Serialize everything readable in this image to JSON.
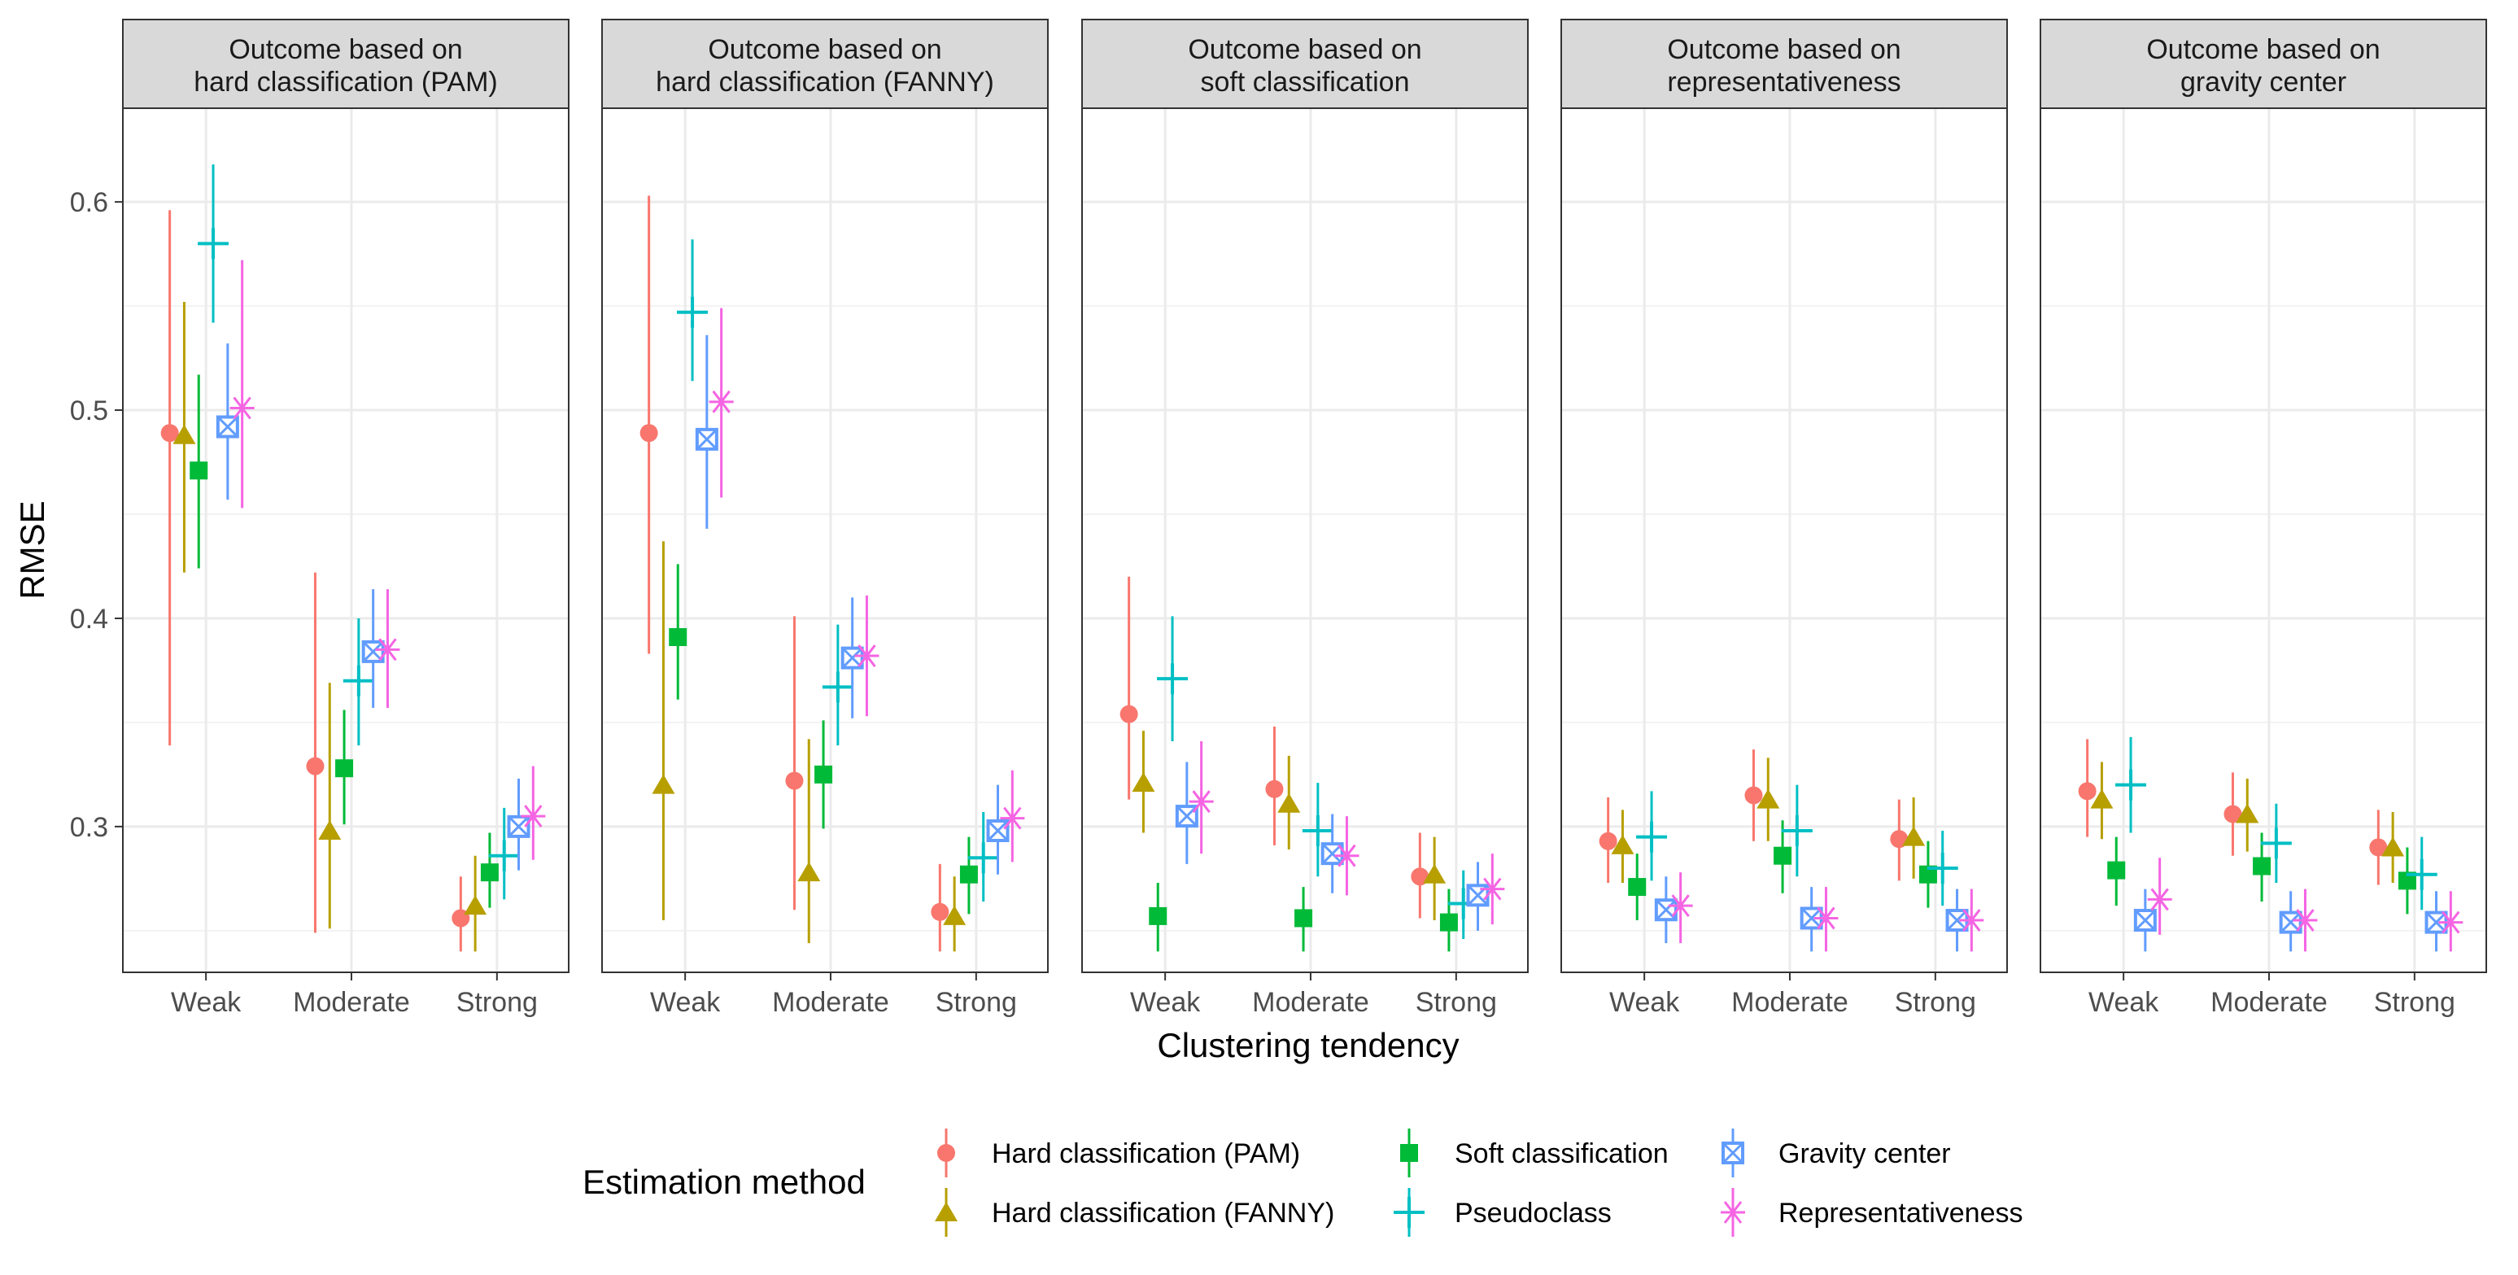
{
  "chart_data": {
    "type": "scatter",
    "subtype": "faceted point-range",
    "xlabel": "Clustering tendency",
    "ylabel": "RMSE",
    "ylim": [
      0.23,
      0.645
    ],
    "yticks": [
      0.3,
      0.4,
      0.5,
      0.6
    ],
    "yticks_labels": [
      "0.3",
      "0.4",
      "0.5",
      "0.6"
    ],
    "categories": [
      "Weak",
      "Moderate",
      "Strong"
    ],
    "grid": true,
    "legend": {
      "title": "Estimation method",
      "placement": "bottom"
    },
    "series": [
      {
        "name": "Hard classification (PAM)",
        "color": "#F8766D",
        "shape": "circle"
      },
      {
        "name": "Hard classification (FANNY)",
        "color": "#B79F00",
        "shape": "triangle"
      },
      {
        "name": "Soft classification",
        "color": "#00BA38",
        "shape": "square"
      },
      {
        "name": "Pseudoclass",
        "color": "#00BFC4",
        "shape": "plus"
      },
      {
        "name": "Gravity center",
        "color": "#619CFF",
        "shape": "boxed-x"
      },
      {
        "name": "Representativeness",
        "color": "#F564E3",
        "shape": "asterisk"
      }
    ],
    "panels": [
      {
        "title_lines": [
          "Outcome based on",
          "hard classification (PAM)"
        ],
        "data": [
          [
            [
              0.489,
              0.339,
              0.596
            ],
            [
              0.329,
              0.249,
              0.422
            ],
            [
              0.256,
              0.24,
              0.276
            ]
          ],
          [
            [
              0.488,
              0.422,
              0.552
            ],
            [
              0.298,
              0.251,
              0.369
            ],
            [
              0.262,
              0.24,
              0.286
            ]
          ],
          [
            [
              0.471,
              0.424,
              0.517
            ],
            [
              0.328,
              0.301,
              0.356
            ],
            [
              0.278,
              0.261,
              0.297
            ]
          ],
          [
            [
              0.58,
              0.542,
              0.618
            ],
            [
              0.37,
              0.339,
              0.4
            ],
            [
              0.286,
              0.265,
              0.309
            ]
          ],
          [
            [
              0.492,
              0.457,
              0.532
            ],
            [
              0.384,
              0.357,
              0.414
            ],
            [
              0.3,
              0.279,
              0.323
            ]
          ],
          [
            [
              0.501,
              0.453,
              0.572
            ],
            [
              0.385,
              0.357,
              0.414
            ],
            [
              0.305,
              0.284,
              0.329
            ]
          ]
        ]
      },
      {
        "title_lines": [
          "Outcome based on",
          "hard classification (FANNY)"
        ],
        "data": [
          [
            [
              0.489,
              0.383,
              0.603
            ],
            [
              0.322,
              0.26,
              0.401
            ],
            [
              0.259,
              0.24,
              0.282
            ]
          ],
          [
            [
              0.32,
              0.255,
              0.437
            ],
            [
              0.278,
              0.244,
              0.342
            ],
            [
              0.257,
              0.24,
              0.276
            ]
          ],
          [
            [
              0.391,
              0.361,
              0.426
            ],
            [
              0.325,
              0.299,
              0.351
            ],
            [
              0.277,
              0.258,
              0.295
            ]
          ],
          [
            [
              0.547,
              0.514,
              0.582
            ],
            [
              0.367,
              0.339,
              0.397
            ],
            [
              0.285,
              0.264,
              0.307
            ]
          ],
          [
            [
              0.486,
              0.443,
              0.536
            ],
            [
              0.381,
              0.352,
              0.41
            ],
            [
              0.298,
              0.277,
              0.32
            ]
          ],
          [
            [
              0.504,
              0.458,
              0.549
            ],
            [
              0.382,
              0.353,
              0.411
            ],
            [
              0.304,
              0.283,
              0.327
            ]
          ]
        ]
      },
      {
        "title_lines": [
          "Outcome based on",
          "soft classification"
        ],
        "data": [
          [
            [
              0.354,
              0.313,
              0.42
            ],
            [
              0.318,
              0.291,
              0.348
            ],
            [
              0.276,
              0.256,
              0.297
            ]
          ],
          [
            [
              0.321,
              0.297,
              0.346
            ],
            [
              0.311,
              0.289,
              0.334
            ],
            [
              0.277,
              0.255,
              0.295
            ]
          ],
          [
            [
              0.257,
              0.24,
              0.273
            ],
            [
              0.256,
              0.24,
              0.271
            ],
            [
              0.254,
              0.24,
              0.27
            ]
          ],
          [
            [
              0.371,
              0.341,
              0.401
            ],
            [
              0.298,
              0.276,
              0.321
            ],
            [
              0.263,
              0.246,
              0.279
            ]
          ],
          [
            [
              0.305,
              0.282,
              0.331
            ],
            [
              0.287,
              0.268,
              0.306
            ],
            [
              0.267,
              0.25,
              0.283
            ]
          ],
          [
            [
              0.312,
              0.287,
              0.341
            ],
            [
              0.286,
              0.267,
              0.305
            ],
            [
              0.27,
              0.253,
              0.287
            ]
          ]
        ]
      },
      {
        "title_lines": [
          "Outcome based on",
          "representativeness"
        ],
        "data": [
          [
            [
              0.293,
              0.273,
              0.314
            ],
            [
              0.315,
              0.293,
              0.337
            ],
            [
              0.294,
              0.274,
              0.313
            ]
          ],
          [
            [
              0.291,
              0.273,
              0.308
            ],
            [
              0.313,
              0.293,
              0.333
            ],
            [
              0.295,
              0.275,
              0.314
            ]
          ],
          [
            [
              0.271,
              0.255,
              0.287
            ],
            [
              0.286,
              0.268,
              0.303
            ],
            [
              0.277,
              0.261,
              0.293
            ]
          ],
          [
            [
              0.295,
              0.274,
              0.317
            ],
            [
              0.298,
              0.276,
              0.32
            ],
            [
              0.28,
              0.262,
              0.298
            ]
          ],
          [
            [
              0.26,
              0.244,
              0.276
            ],
            [
              0.256,
              0.24,
              0.271
            ],
            [
              0.255,
              0.24,
              0.27
            ]
          ],
          [
            [
              0.262,
              0.244,
              0.278
            ],
            [
              0.256,
              0.24,
              0.271
            ],
            [
              0.255,
              0.24,
              0.27
            ]
          ]
        ]
      },
      {
        "title_lines": [
          "Outcome based on",
          "gravity center"
        ],
        "data": [
          [
            [
              0.317,
              0.295,
              0.342
            ],
            [
              0.306,
              0.286,
              0.326
            ],
            [
              0.29,
              0.272,
              0.308
            ]
          ],
          [
            [
              0.313,
              0.294,
              0.331
            ],
            [
              0.306,
              0.288,
              0.323
            ],
            [
              0.29,
              0.273,
              0.307
            ]
          ],
          [
            [
              0.279,
              0.262,
              0.295
            ],
            [
              0.281,
              0.264,
              0.297
            ],
            [
              0.274,
              0.258,
              0.29
            ]
          ],
          [
            [
              0.32,
              0.297,
              0.343
            ],
            [
              0.292,
              0.273,
              0.311
            ],
            [
              0.277,
              0.26,
              0.295
            ]
          ],
          [
            [
              0.255,
              0.24,
              0.27
            ],
            [
              0.254,
              0.24,
              0.269
            ],
            [
              0.254,
              0.24,
              0.269
            ]
          ],
          [
            [
              0.265,
              0.248,
              0.285
            ],
            [
              0.255,
              0.24,
              0.27
            ],
            [
              0.254,
              0.24,
              0.269
            ]
          ]
        ]
      }
    ]
  }
}
